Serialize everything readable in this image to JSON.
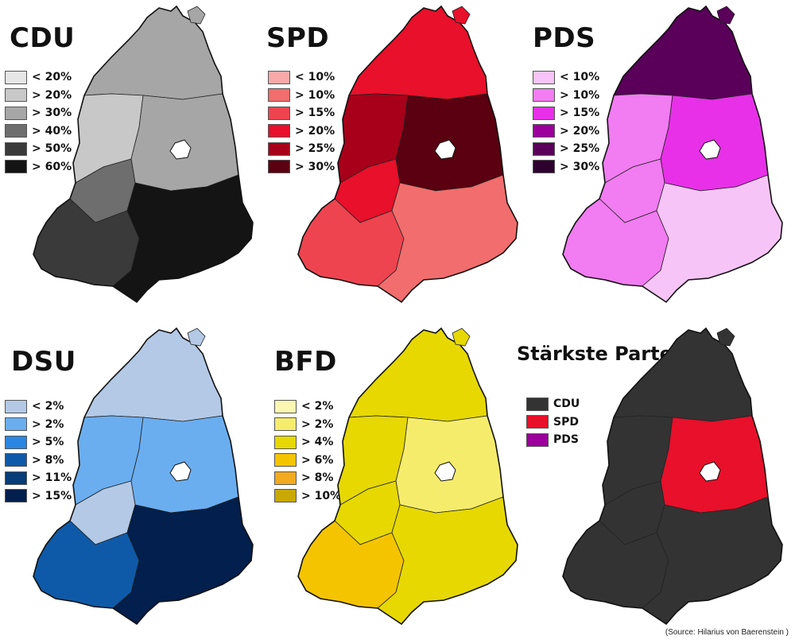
{
  "maps": [
    {
      "id": "cdu",
      "title": "CDU",
      "legend": [
        {
          "label": "< 20%",
          "color": "#e6e6e6"
        },
        {
          "label": "> 20%",
          "color": "#c8c8c8"
        },
        {
          "label": "> 30%",
          "color": "#a6a6a6"
        },
        {
          "label": "> 40%",
          "color": "#6e6e6e"
        },
        {
          "label": "> 50%",
          "color": "#3a3a3a"
        },
        {
          "label": "> 60%",
          "color": "#141414"
        }
      ],
      "zones": [
        "#a6a6a6",
        "#c8c8c8",
        "#a6a6a6",
        "#6e6e6e",
        "#3a3a3a",
        "#141414"
      ]
    },
    {
      "id": "spd",
      "title": "SPD",
      "legend": [
        {
          "label": "< 10%",
          "color": "#f7a9a9"
        },
        {
          "label": "> 10%",
          "color": "#f26d6d"
        },
        {
          "label": "> 15%",
          "color": "#ee4450"
        },
        {
          "label": "> 20%",
          "color": "#e8102a"
        },
        {
          "label": "> 25%",
          "color": "#a8001a"
        },
        {
          "label": "> 30%",
          "color": "#5a0010"
        }
      ],
      "zones": [
        "#e8102a",
        "#a8001a",
        "#5a0010",
        "#e8102a",
        "#ee4450",
        "#f26d6d"
      ]
    },
    {
      "id": "pds",
      "title": "PDS",
      "legend": [
        {
          "label": "< 10%",
          "color": "#f7c4f7"
        },
        {
          "label": "> 10%",
          "color": "#f27cf2"
        },
        {
          "label": "> 15%",
          "color": "#e830e8"
        },
        {
          "label": "> 20%",
          "color": "#9c009c"
        },
        {
          "label": "> 25%",
          "color": "#5a005a"
        },
        {
          "label": "> 30%",
          "color": "#2e002e"
        }
      ],
      "zones": [
        "#5a005a",
        "#f27cf2",
        "#e830e8",
        "#f27cf2",
        "#f27cf2",
        "#f7c4f7"
      ]
    },
    {
      "id": "dsu",
      "title": "DSU",
      "legend": [
        {
          "label": "< 2%",
          "color": "#b3c9e6"
        },
        {
          "label": "> 2%",
          "color": "#6aaef0"
        },
        {
          "label": "> 5%",
          "color": "#2a86e0"
        },
        {
          "label": "> 8%",
          "color": "#0f5aa8"
        },
        {
          "label": "> 11%",
          "color": "#073d78"
        },
        {
          "label": "> 15%",
          "color": "#021f4d"
        }
      ],
      "zones": [
        "#b3c9e6",
        "#6aaef0",
        "#6aaef0",
        "#b3c9e6",
        "#0f5aa8",
        "#021f4d"
      ]
    },
    {
      "id": "bfd",
      "title": "BFD",
      "legend": [
        {
          "label": "< 2%",
          "color": "#fbf6b2"
        },
        {
          "label": "> 2%",
          "color": "#f6ec6c"
        },
        {
          "label": "> 4%",
          "color": "#e6d800"
        },
        {
          "label": "> 6%",
          "color": "#f5c400"
        },
        {
          "label": "> 8%",
          "color": "#f2aa1e"
        },
        {
          "label": "> 10%",
          "color": "#c9a800"
        }
      ],
      "zones": [
        "#e6d800",
        "#e6d800",
        "#f6ec6c",
        "#e6d800",
        "#f5c400",
        "#e6d800"
      ]
    },
    {
      "id": "strongest",
      "title": "Stärkste Partei",
      "legend": [
        {
          "label": "CDU",
          "color": "#333333"
        },
        {
          "label": "SPD",
          "color": "#e8102a"
        },
        {
          "label": "PDS",
          "color": "#9c009c"
        }
      ],
      "zones": [
        "#333333",
        "#333333",
        "#e8102a",
        "#333333",
        "#333333",
        "#333333"
      ]
    }
  ],
  "source": "(Source: Hilarius von Baerenstein )"
}
